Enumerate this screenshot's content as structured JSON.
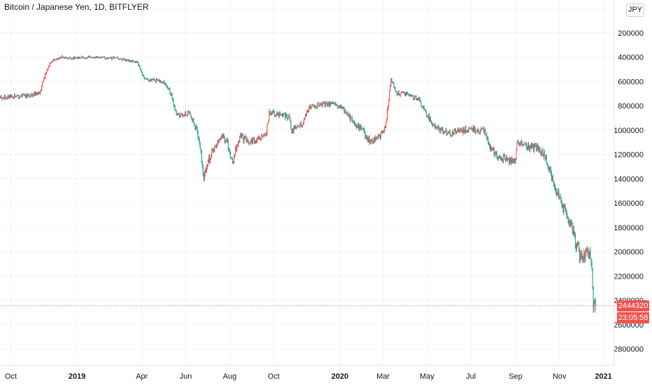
{
  "header": {
    "title": "Bitcoin / Japanese Yen, 1D, BITFLYER",
    "currency_button": "JPY"
  },
  "price_axis": {
    "inverted": true,
    "ticks": [
      "0",
      "200000",
      "400000",
      "600000",
      "800000",
      "1000000",
      "1200000",
      "1400000",
      "1600000",
      "1800000",
      "2000000",
      "2200000",
      "2400000",
      "2600000",
      "2800000"
    ]
  },
  "time_axis": {
    "ticks": [
      {
        "label": "Oct",
        "date": "2018-10-01",
        "bold": false
      },
      {
        "label": "2019",
        "date": "2019-01-01",
        "bold": true
      },
      {
        "label": "Apr",
        "date": "2019-04-01",
        "bold": false
      },
      {
        "label": "Jun",
        "date": "2019-06-01",
        "bold": false
      },
      {
        "label": "Aug",
        "date": "2019-08-01",
        "bold": false
      },
      {
        "label": "Oct",
        "date": "2019-10-01",
        "bold": false
      },
      {
        "label": "2020",
        "date": "2020-01-01",
        "bold": true
      },
      {
        "label": "Mar",
        "date": "2020-03-01",
        "bold": false
      },
      {
        "label": "May",
        "date": "2020-05-01",
        "bold": false
      },
      {
        "label": "Jul",
        "date": "2020-07-01",
        "bold": false
      },
      {
        "label": "Sep",
        "date": "2020-09-01",
        "bold": false
      },
      {
        "label": "Nov",
        "date": "2020-11-01",
        "bold": false
      },
      {
        "label": "2021",
        "date": "2021-01-01",
        "bold": true
      }
    ]
  },
  "last_price": {
    "value": "2444320",
    "countdown": "23:05:58"
  },
  "colors": {
    "up": "#26a69a",
    "down": "#ef5350",
    "grid": "#f0f3fa",
    "axis_text": "#131722"
  },
  "chart_data": {
    "type": "candlestick",
    "title": "Bitcoin / Japanese Yen, 1D, BITFLYER",
    "ylim": [
      0,
      2950000
    ],
    "xlim": [
      "2018-09-16",
      "2021-01-16"
    ],
    "close_path": [
      [
        "2018-09-16",
        730000
      ],
      [
        "2018-10-15",
        720000
      ],
      [
        "2018-11-10",
        700000
      ],
      [
        "2018-11-15",
        600000
      ],
      [
        "2018-11-25",
        440000
      ],
      [
        "2018-12-10",
        400000
      ],
      [
        "2018-12-25",
        410000
      ],
      [
        "2019-01-20",
        400000
      ],
      [
        "2019-02-25",
        410000
      ],
      [
        "2019-03-25",
        440000
      ],
      [
        "2019-04-05",
        580000
      ],
      [
        "2019-05-01",
        600000
      ],
      [
        "2019-05-10",
        680000
      ],
      [
        "2019-05-20",
        880000
      ],
      [
        "2019-06-05",
        860000
      ],
      [
        "2019-06-15",
        980000
      ],
      [
        "2019-06-20",
        1100000
      ],
      [
        "2019-06-26",
        1400000
      ],
      [
        "2019-07-02",
        1250000
      ],
      [
        "2019-07-10",
        1150000
      ],
      [
        "2019-07-20",
        1050000
      ],
      [
        "2019-07-28",
        1100000
      ],
      [
        "2019-08-05",
        1250000
      ],
      [
        "2019-08-15",
        1050000
      ],
      [
        "2019-09-01",
        1100000
      ],
      [
        "2019-09-20",
        1050000
      ],
      [
        "2019-09-25",
        860000
      ],
      [
        "2019-10-10",
        880000
      ],
      [
        "2019-10-22",
        890000
      ],
      [
        "2019-10-26",
        1000000
      ],
      [
        "2019-11-10",
        950000
      ],
      [
        "2019-11-20",
        800000
      ],
      [
        "2019-12-10",
        790000
      ],
      [
        "2019-12-25",
        780000
      ],
      [
        "2020-01-10",
        850000
      ],
      [
        "2020-01-20",
        950000
      ],
      [
        "2020-02-01",
        1000000
      ],
      [
        "2020-02-12",
        1100000
      ],
      [
        "2020-02-26",
        1050000
      ],
      [
        "2020-03-05",
        950000
      ],
      [
        "2020-03-12",
        580000
      ],
      [
        "2020-03-20",
        700000
      ],
      [
        "2020-04-01",
        700000
      ],
      [
        "2020-04-20",
        750000
      ],
      [
        "2020-05-01",
        870000
      ],
      [
        "2020-05-10",
        960000
      ],
      [
        "2020-06-01",
        1030000
      ],
      [
        "2020-06-15",
        1010000
      ],
      [
        "2020-07-01",
        990000
      ],
      [
        "2020-07-20",
        1010000
      ],
      [
        "2020-07-28",
        1150000
      ],
      [
        "2020-08-10",
        1220000
      ],
      [
        "2020-08-20",
        1250000
      ],
      [
        "2020-09-01",
        1260000
      ],
      [
        "2020-09-03",
        1100000
      ],
      [
        "2020-09-15",
        1130000
      ],
      [
        "2020-10-01",
        1150000
      ],
      [
        "2020-10-10",
        1200000
      ],
      [
        "2020-10-22",
        1400000
      ],
      [
        "2020-11-05",
        1650000
      ],
      [
        "2020-11-15",
        1750000
      ],
      [
        "2020-11-25",
        1950000
      ],
      [
        "2020-12-01",
        2050000
      ],
      [
        "2020-12-08",
        2000000
      ],
      [
        "2020-12-15",
        2050000
      ],
      [
        "2020-12-18",
        2400000
      ],
      [
        "2020-12-21",
        2444320
      ]
    ]
  }
}
